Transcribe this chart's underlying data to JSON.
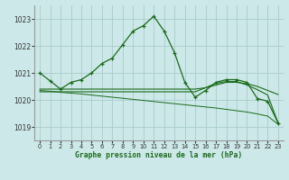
{
  "title": "Graphe pression niveau de la mer (hPa)",
  "bg_color": "#cce8e8",
  "grid_color": "#aacccc",
  "line_color": "#1a6b1a",
  "xlim": [
    -0.5,
    23.5
  ],
  "ylim": [
    1018.5,
    1023.5
  ],
  "yticks": [
    1019,
    1020,
    1021,
    1022,
    1023
  ],
  "xticks": [
    0,
    1,
    2,
    3,
    4,
    5,
    6,
    7,
    8,
    9,
    10,
    11,
    12,
    13,
    14,
    15,
    16,
    17,
    18,
    19,
    20,
    21,
    22,
    23
  ],
  "series1_x": [
    0,
    1,
    2,
    3,
    4,
    5,
    6,
    7,
    8,
    9,
    10,
    11,
    12,
    13,
    14,
    15,
    16,
    17,
    18,
    19,
    20,
    21,
    22,
    23
  ],
  "series1_y": [
    1021.0,
    1020.7,
    1020.4,
    1020.65,
    1020.75,
    1021.0,
    1021.35,
    1021.55,
    1022.05,
    1022.55,
    1022.75,
    1023.1,
    1022.55,
    1021.75,
    1020.65,
    1020.1,
    1020.35,
    1020.65,
    1020.75,
    1020.75,
    1020.65,
    1020.05,
    1019.95,
    1019.15
  ],
  "series2_x": [
    0,
    1,
    2,
    3,
    4,
    5,
    6,
    7,
    8,
    9,
    10,
    11,
    12,
    13,
    14,
    15,
    16,
    17,
    18,
    19,
    20,
    21,
    22,
    23
  ],
  "series2_y": [
    1020.4,
    1020.4,
    1020.4,
    1020.4,
    1020.4,
    1020.4,
    1020.4,
    1020.4,
    1020.4,
    1020.4,
    1020.4,
    1020.4,
    1020.4,
    1020.4,
    1020.4,
    1020.4,
    1020.45,
    1020.55,
    1020.65,
    1020.65,
    1020.6,
    1020.5,
    1020.35,
    1020.2
  ],
  "series3_x": [
    0,
    1,
    2,
    3,
    4,
    5,
    6,
    7,
    8,
    9,
    10,
    11,
    12,
    13,
    14,
    15,
    16,
    17,
    18,
    19,
    20,
    21,
    22,
    23
  ],
  "series3_y": [
    1020.35,
    1020.32,
    1020.28,
    1020.25,
    1020.22,
    1020.18,
    1020.14,
    1020.1,
    1020.06,
    1020.02,
    1019.98,
    1019.94,
    1019.9,
    1019.86,
    1019.82,
    1019.78,
    1019.74,
    1019.7,
    1019.65,
    1019.6,
    1019.55,
    1019.48,
    1019.4,
    1019.1
  ],
  "series4_x": [
    0,
    1,
    2,
    3,
    4,
    5,
    6,
    7,
    8,
    9,
    10,
    11,
    12,
    13,
    14,
    15,
    16,
    17,
    18,
    19,
    20,
    21,
    22,
    23
  ],
  "series4_y": [
    1020.3,
    1020.3,
    1020.3,
    1020.3,
    1020.3,
    1020.3,
    1020.3,
    1020.3,
    1020.3,
    1020.3,
    1020.3,
    1020.3,
    1020.3,
    1020.3,
    1020.3,
    1020.3,
    1020.45,
    1020.62,
    1020.68,
    1020.68,
    1020.55,
    1020.38,
    1020.18,
    1019.15
  ]
}
